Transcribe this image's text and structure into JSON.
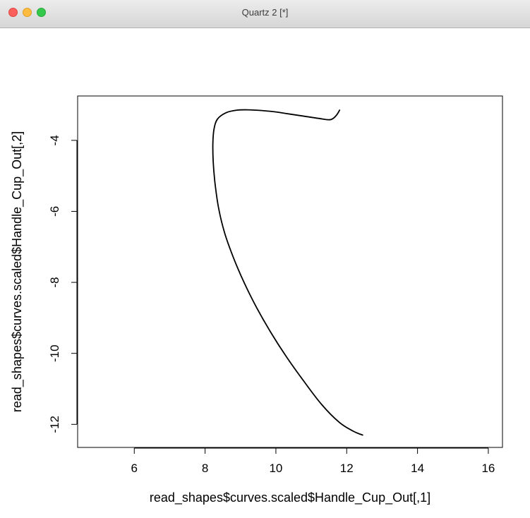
{
  "window": {
    "title": "Quartz 2 [*]",
    "buttons": {
      "close": "close",
      "minimize": "minimize",
      "zoom": "zoom"
    }
  },
  "chart_data": {
    "type": "line",
    "title": "",
    "xlabel": "read_shapes$curves.scaled$Handle_Cup_Out[,1]",
    "ylabel": "read_shapes$curves.scaled$Handle_Cup_Out[,2]",
    "xlim": [
      4.4,
      16.4
    ],
    "ylim": [
      -12.65,
      -2.75
    ],
    "x_ticks": [
      6,
      8,
      10,
      12,
      14,
      16
    ],
    "y_ticks": [
      -4,
      -6,
      -8,
      -10,
      -12
    ],
    "grid": false,
    "legend": "none",
    "line_color": "#000000",
    "series": [
      {
        "x": [
          11.8,
          11.72,
          11.62,
          11.5,
          11.2,
          10.8,
          10.4,
          10.0,
          9.6,
          9.2,
          8.9,
          8.6,
          8.35,
          8.25,
          8.22,
          8.23,
          8.28,
          8.38,
          8.55,
          8.8,
          9.1,
          9.45,
          9.85,
          10.3,
          10.8,
          11.3,
          11.8,
          12.2,
          12.45
        ],
        "y": [
          -3.15,
          -3.28,
          -3.38,
          -3.42,
          -3.38,
          -3.32,
          -3.26,
          -3.2,
          -3.16,
          -3.14,
          -3.15,
          -3.22,
          -3.4,
          -3.7,
          -4.1,
          -4.6,
          -5.2,
          -5.9,
          -6.6,
          -7.3,
          -8.0,
          -8.7,
          -9.4,
          -10.1,
          -10.8,
          -11.45,
          -11.95,
          -12.2,
          -12.3
        ]
      }
    ]
  }
}
